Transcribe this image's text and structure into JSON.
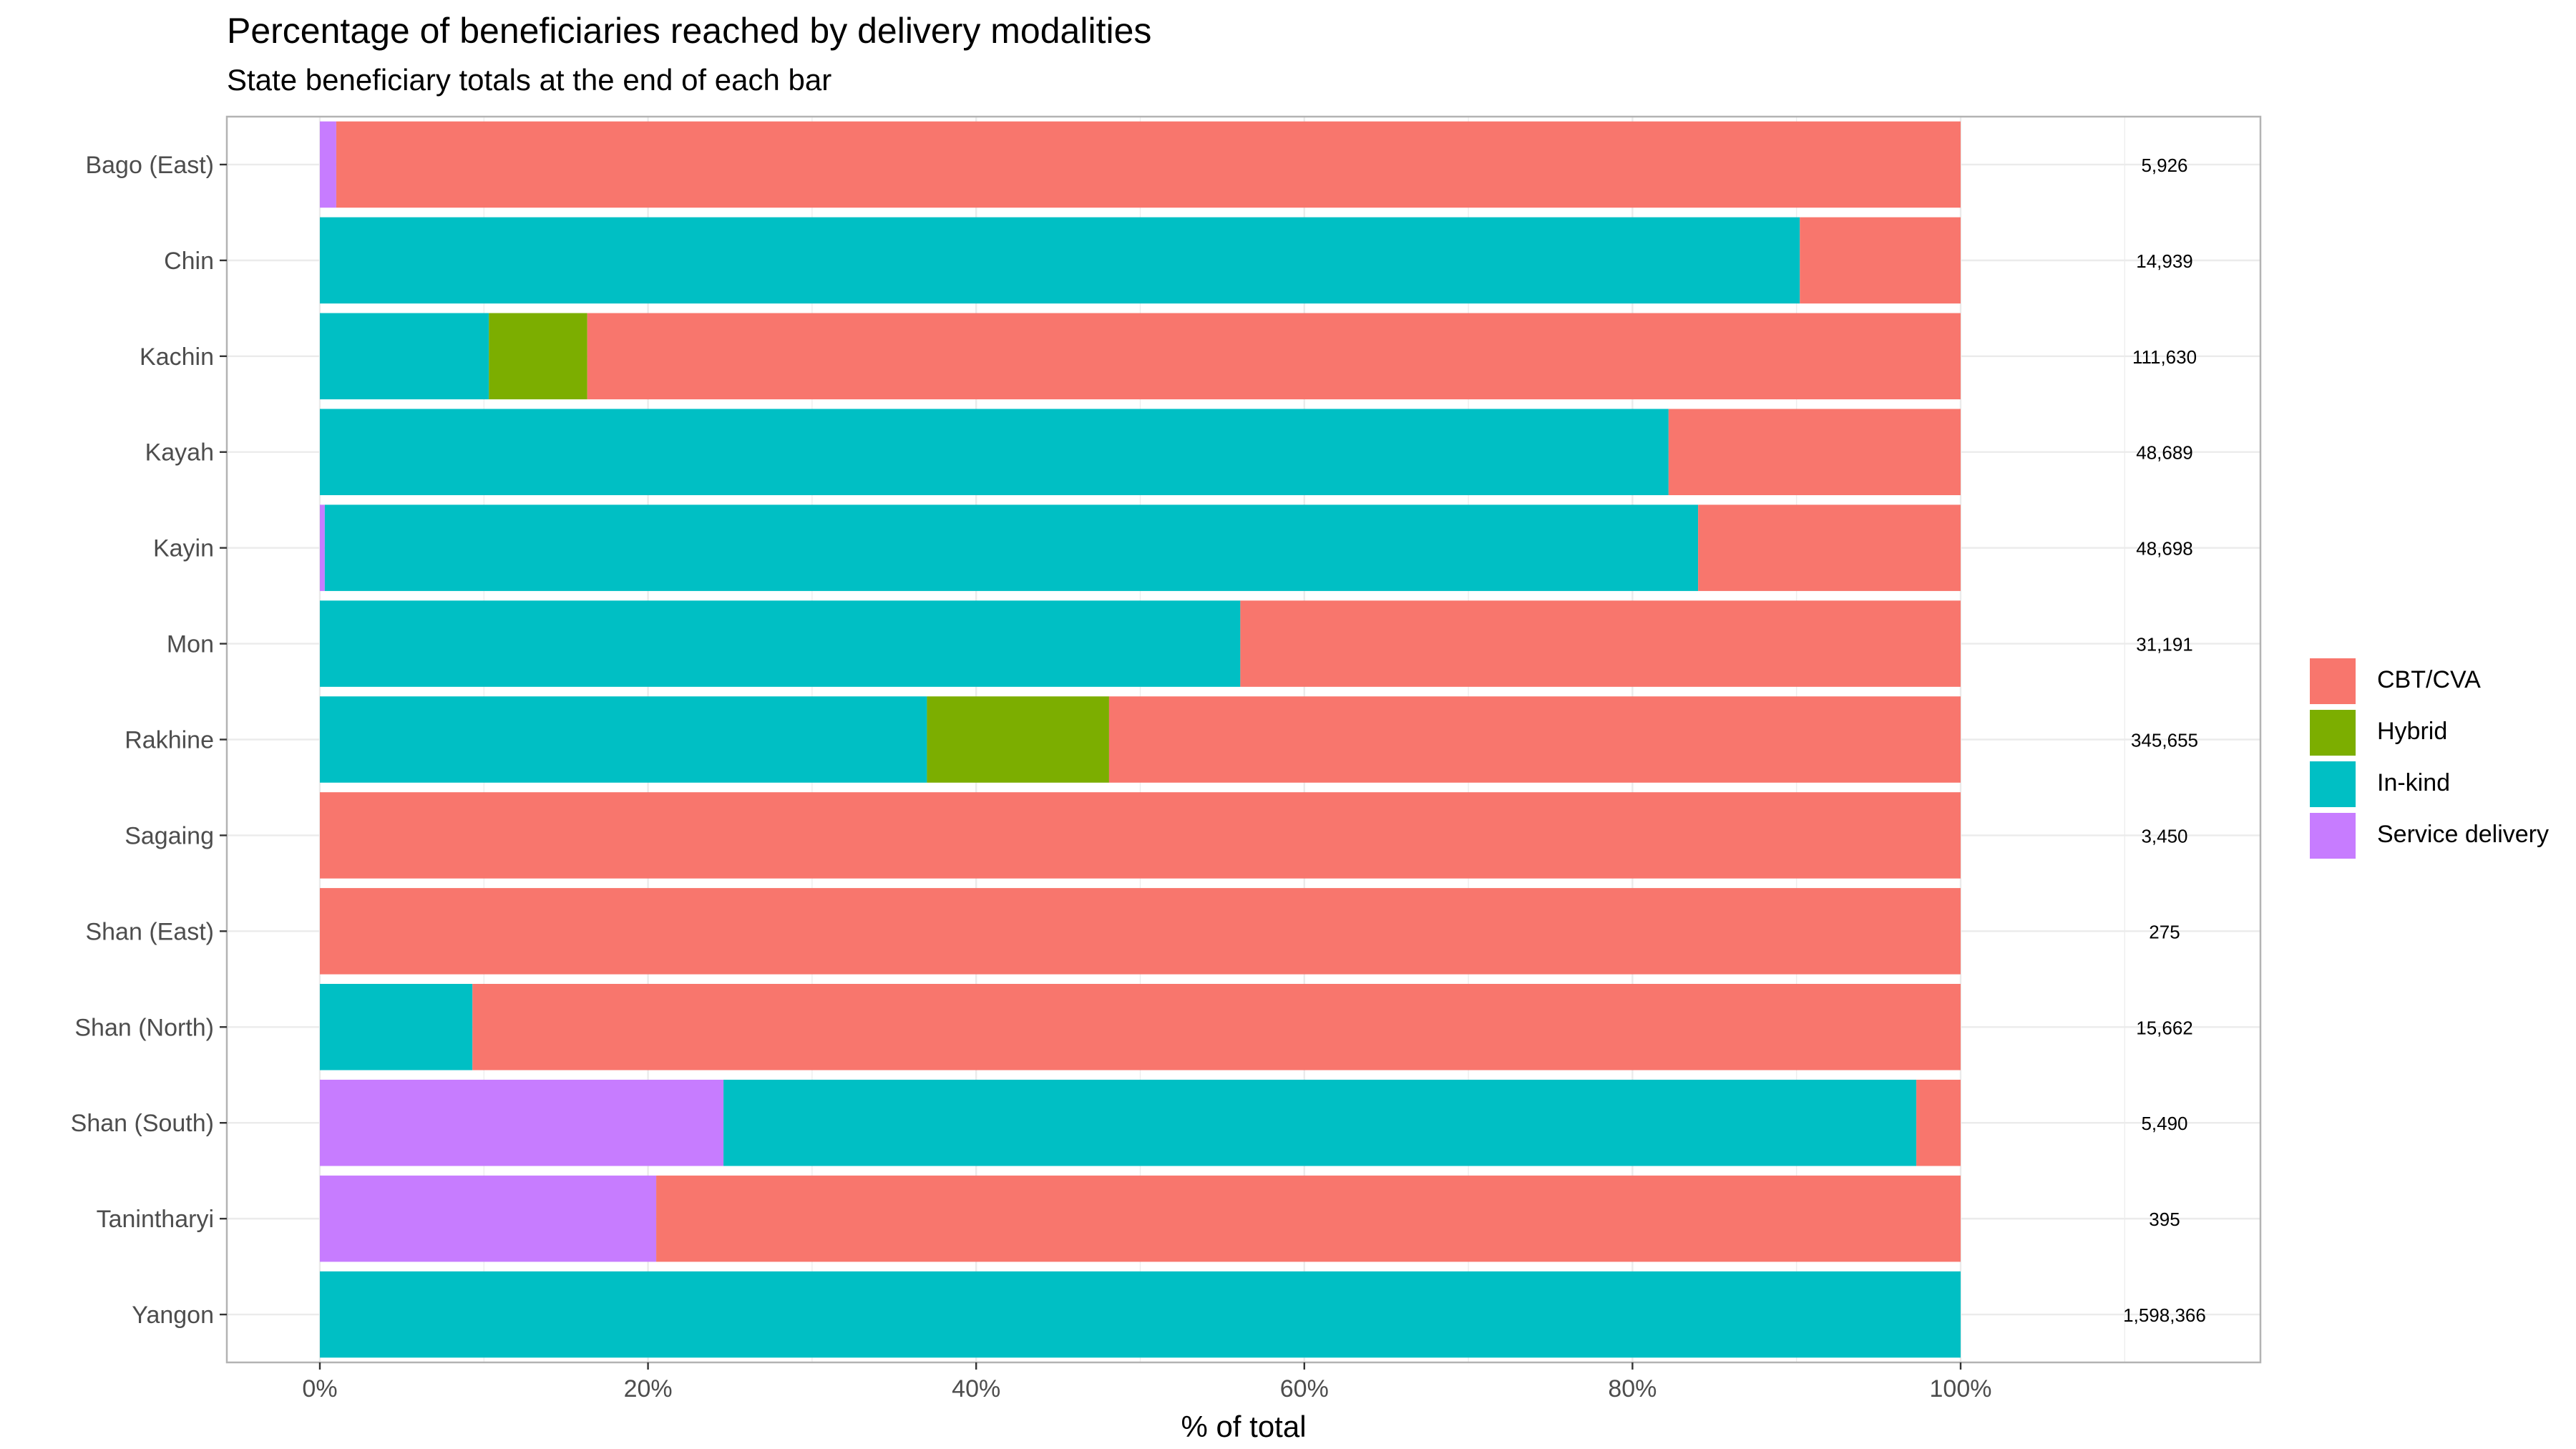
{
  "chart_data": {
    "type": "bar",
    "orientation": "horizontal",
    "stacked": "percent",
    "title": "Percentage of beneficiaries reached by delivery modalities",
    "subtitle": "State beneficiary totals at the end of each bar",
    "xlabel": "% of total",
    "ylabel": "",
    "xlim": [
      0,
      1.1
    ],
    "x_ticks": [
      "0%",
      "20%",
      "40%",
      "60%",
      "80%",
      "100%"
    ],
    "grid": true,
    "legend_position": "right",
    "categories": [
      "Bago (East)",
      "Chin",
      "Kachin",
      "Kayah",
      "Kayin",
      "Mon",
      "Rakhine",
      "Sagaing",
      "Shan (East)",
      "Shan (North)",
      "Shan (South)",
      "Tanintharyi",
      "Yangon"
    ],
    "series": [
      {
        "name": "Service delivery",
        "color": "#C77CFF",
        "values": [
          1.0,
          0,
          0,
          0,
          0.3,
          0,
          0,
          0,
          0,
          0,
          24.6,
          20.5,
          0
        ]
      },
      {
        "name": "In-kind",
        "color": "#00BFC4",
        "values": [
          0,
          90.2,
          10.3,
          82.2,
          83.7,
          56.1,
          37.0,
          0,
          0,
          9.3,
          72.7,
          0,
          100.0
        ]
      },
      {
        "name": "Hybrid",
        "color": "#7CAE00",
        "values": [
          0,
          0,
          6.0,
          0,
          0,
          0,
          11.1,
          0,
          0,
          0,
          0,
          0,
          0
        ]
      },
      {
        "name": "CBT/CVA",
        "color": "#F8766D",
        "values": [
          99.0,
          9.8,
          83.7,
          17.8,
          16.0,
          43.9,
          51.9,
          100.0,
          100.0,
          90.7,
          2.7,
          79.5,
          0
        ]
      }
    ],
    "totals": [
      "5,926",
      "14,939",
      "111,630",
      "48,689",
      "48,698",
      "31,191",
      "345,655",
      "3,450",
      "275",
      "15,662",
      "5,490",
      "395",
      "1,598,366"
    ]
  },
  "legend": {
    "items": [
      {
        "label": "CBT/CVA",
        "color": "#F8766D"
      },
      {
        "label": "Hybrid",
        "color": "#7CAE00"
      },
      {
        "label": "In-kind",
        "color": "#00BFC4"
      },
      {
        "label": "Service delivery",
        "color": "#C77CFF"
      }
    ]
  }
}
